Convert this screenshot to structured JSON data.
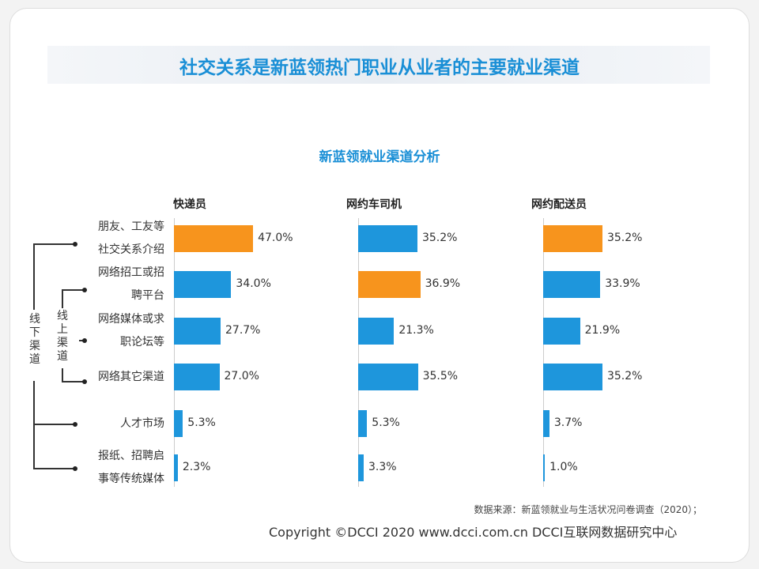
{
  "title": "社交关系是新蓝领热门职业从业者的主要就业渠道",
  "subtitle": "新蓝领就业渠道分析",
  "source": "数据来源：新蓝领就业与生活状况问卷调查（2020）；",
  "copyright": "Copyright ©DCCI 2020   www.dcci.com.cn   DCCI互联网数据研究中心",
  "group_labels": {
    "offline": "线下渠道",
    "online": "线上渠道"
  },
  "colors": {
    "highlight": "#f7941d",
    "normal": "#1e96dc"
  },
  "chart_data": {
    "type": "bar",
    "orientation": "horizontal",
    "categories": [
      "朋友、工友等社交关系介绍",
      "网络招工或招聘平台",
      "网络媒体或求职论坛等",
      "网络其它渠道",
      "人才市场",
      "报纸、招聘启事等传统媒体"
    ],
    "category_lines": [
      [
        "朋友、工友等",
        "社交关系介绍"
      ],
      [
        "网络招工或招",
        "聘平台"
      ],
      [
        "网络媒体或求",
        "职论坛等"
      ],
      [
        "网络其它渠道"
      ],
      [
        "人才市场"
      ],
      [
        "报纸、招聘启",
        "事等传统媒体"
      ]
    ],
    "unit": "%",
    "series": [
      {
        "name": "快递员",
        "values": [
          47.0,
          34.0,
          27.7,
          27.0,
          5.3,
          2.3
        ],
        "highlight": 0
      },
      {
        "name": "网约车司机",
        "values": [
          35.2,
          36.9,
          21.3,
          35.5,
          5.3,
          3.3
        ],
        "highlight": 1
      },
      {
        "name": "网约配送员",
        "values": [
          35.2,
          33.9,
          21.9,
          35.2,
          3.7,
          1.0
        ],
        "highlight": 0
      }
    ]
  }
}
